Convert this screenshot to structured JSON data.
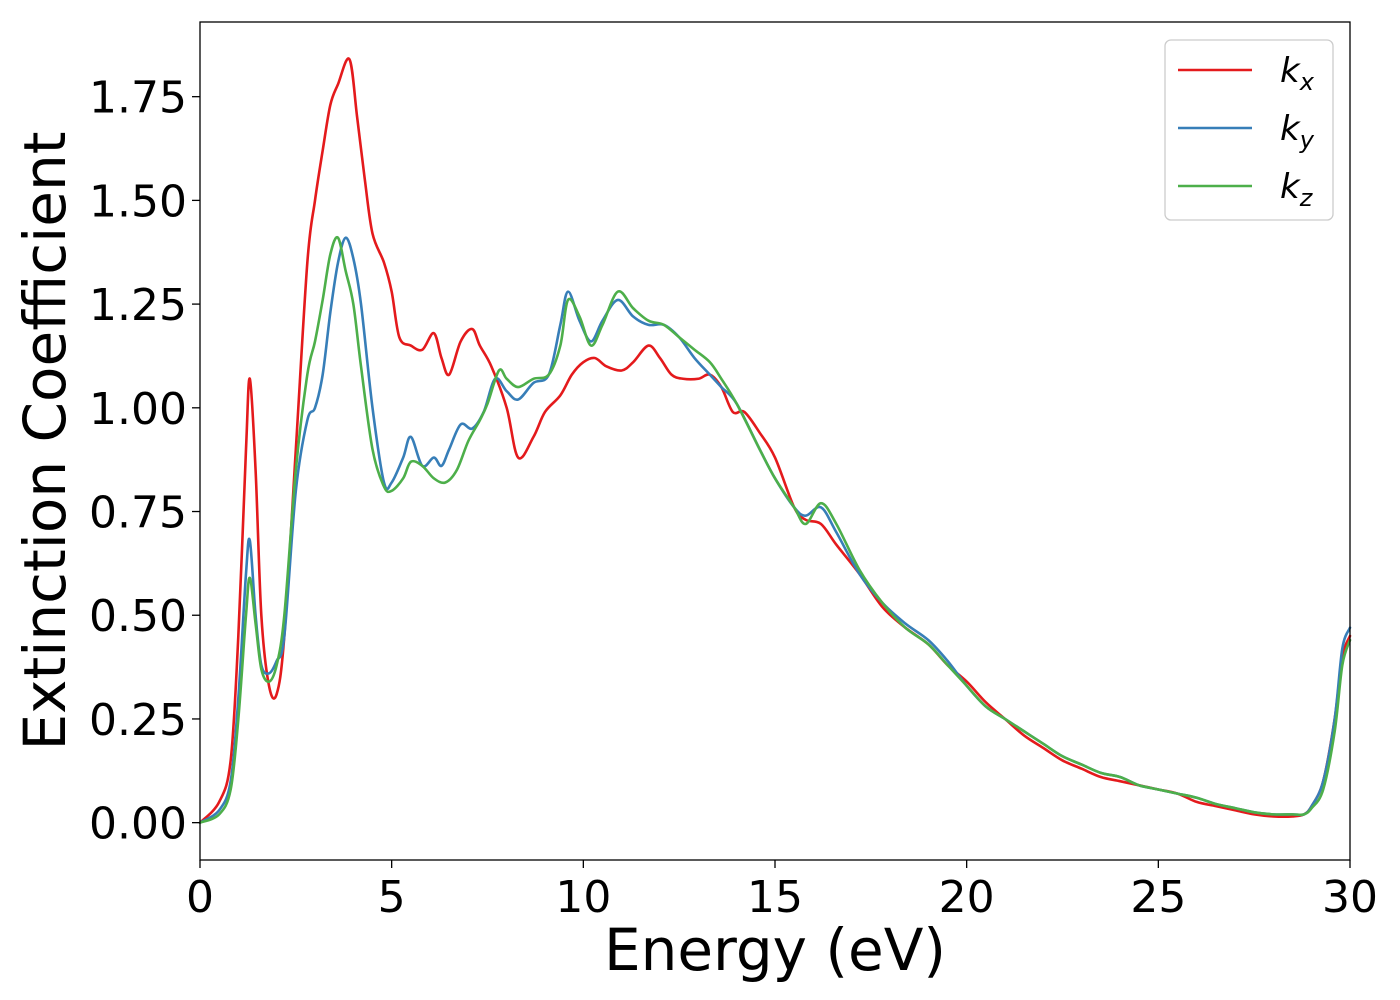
{
  "chart_data": {
    "type": "line",
    "title": "",
    "xlabel": "Energy (eV)",
    "ylabel": "Extinction Coefficient",
    "xlim": [
      0,
      30
    ],
    "ylim": [
      -0.09,
      1.93
    ],
    "xticks": [
      0,
      5,
      10,
      15,
      20,
      25,
      30
    ],
    "xtick_labels": [
      "0",
      "5",
      "10",
      "15",
      "20",
      "25",
      "30"
    ],
    "yticks": [
      0.0,
      0.25,
      0.5,
      0.75,
      1.0,
      1.25,
      1.5,
      1.75
    ],
    "ytick_labels": [
      "0.00",
      "0.25",
      "0.50",
      "0.75",
      "1.00",
      "1.25",
      "1.50",
      "1.75"
    ],
    "grid": false,
    "legend_position": "top-right",
    "series": [
      {
        "name": "k_x",
        "label_base": "k",
        "label_sub": "x",
        "color": "#e41a1c",
        "x": [
          0,
          0.5,
          0.8,
          1.0,
          1.2,
          1.3,
          1.45,
          1.6,
          1.8,
          2.0,
          2.2,
          2.5,
          2.8,
          3.0,
          3.2,
          3.4,
          3.6,
          3.9,
          4.1,
          4.3,
          4.5,
          4.8,
          5.0,
          5.2,
          5.5,
          5.8,
          6.1,
          6.3,
          6.5,
          6.8,
          7.1,
          7.3,
          7.6,
          8.0,
          8.3,
          8.7,
          9.0,
          9.4,
          9.7,
          10.0,
          10.3,
          10.6,
          11.0,
          11.3,
          11.7,
          12.0,
          12.3,
          12.6,
          13.0,
          13.3,
          13.6,
          13.9,
          14.2,
          14.6,
          15.0,
          15.5,
          15.8,
          16.2,
          16.6,
          17.2,
          17.8,
          18.4,
          19.0,
          19.5,
          20.0,
          20.5,
          21.0,
          21.5,
          22.0,
          22.5,
          23.0,
          23.5,
          24.0,
          24.5,
          25.0,
          25.5,
          26.0,
          26.5,
          27.0,
          27.5,
          28.0,
          28.5,
          28.8,
          29.0,
          29.3,
          29.6,
          29.8,
          30.0
        ],
        "y": [
          0.0,
          0.05,
          0.15,
          0.45,
          0.9,
          1.07,
          0.85,
          0.5,
          0.33,
          0.31,
          0.45,
          0.9,
          1.35,
          1.5,
          1.62,
          1.73,
          1.78,
          1.84,
          1.7,
          1.55,
          1.42,
          1.35,
          1.28,
          1.17,
          1.15,
          1.14,
          1.18,
          1.12,
          1.08,
          1.16,
          1.19,
          1.15,
          1.1,
          1.0,
          0.88,
          0.93,
          0.99,
          1.03,
          1.08,
          1.11,
          1.12,
          1.1,
          1.09,
          1.11,
          1.15,
          1.12,
          1.08,
          1.07,
          1.07,
          1.08,
          1.05,
          0.99,
          0.99,
          0.94,
          0.88,
          0.76,
          0.73,
          0.72,
          0.67,
          0.6,
          0.52,
          0.47,
          0.43,
          0.38,
          0.34,
          0.29,
          0.25,
          0.21,
          0.18,
          0.15,
          0.13,
          0.11,
          0.1,
          0.09,
          0.08,
          0.07,
          0.05,
          0.04,
          0.03,
          0.02,
          0.015,
          0.015,
          0.02,
          0.04,
          0.1,
          0.25,
          0.4,
          0.45
        ]
      },
      {
        "name": "k_y",
        "label_base": "k",
        "label_sub": "y",
        "color": "#377eb8",
        "x": [
          0,
          0.5,
          0.8,
          1.0,
          1.2,
          1.3,
          1.45,
          1.6,
          1.8,
          2.0,
          2.2,
          2.5,
          2.8,
          3.0,
          3.2,
          3.4,
          3.6,
          3.8,
          4.0,
          4.2,
          4.5,
          4.8,
          5.0,
          5.3,
          5.5,
          5.8,
          6.1,
          6.3,
          6.5,
          6.8,
          7.1,
          7.4,
          7.7,
          8.0,
          8.3,
          8.7,
          9.1,
          9.4,
          9.6,
          9.9,
          10.2,
          10.5,
          10.9,
          11.3,
          11.7,
          12.1,
          12.5,
          12.9,
          13.3,
          13.6,
          14.0,
          14.6,
          15.0,
          15.5,
          15.8,
          16.2,
          16.6,
          17.2,
          17.8,
          18.4,
          19.0,
          19.5,
          20.0,
          20.5,
          21.0,
          21.5,
          22.0,
          22.5,
          23.0,
          23.5,
          24.0,
          24.5,
          25.0,
          25.5,
          26.0,
          26.5,
          27.0,
          27.5,
          28.0,
          28.5,
          28.8,
          29.0,
          29.3,
          29.6,
          29.8,
          30.0
        ],
        "y": [
          0.0,
          0.03,
          0.1,
          0.3,
          0.6,
          0.68,
          0.5,
          0.38,
          0.36,
          0.39,
          0.45,
          0.8,
          0.97,
          1.0,
          1.08,
          1.23,
          1.35,
          1.41,
          1.36,
          1.25,
          1.0,
          0.82,
          0.82,
          0.88,
          0.93,
          0.86,
          0.88,
          0.86,
          0.9,
          0.96,
          0.95,
          0.99,
          1.07,
          1.04,
          1.02,
          1.06,
          1.08,
          1.2,
          1.28,
          1.21,
          1.16,
          1.21,
          1.26,
          1.22,
          1.2,
          1.2,
          1.17,
          1.12,
          1.08,
          1.05,
          1.01,
          0.9,
          0.83,
          0.76,
          0.74,
          0.76,
          0.7,
          0.6,
          0.53,
          0.48,
          0.44,
          0.39,
          0.33,
          0.28,
          0.25,
          0.22,
          0.19,
          0.16,
          0.14,
          0.12,
          0.11,
          0.09,
          0.08,
          0.07,
          0.06,
          0.045,
          0.035,
          0.025,
          0.02,
          0.02,
          0.02,
          0.04,
          0.1,
          0.25,
          0.42,
          0.47
        ]
      },
      {
        "name": "k_z",
        "label_base": "k",
        "label_sub": "z",
        "color": "#4daf4a",
        "x": [
          0,
          0.5,
          0.8,
          1.0,
          1.2,
          1.3,
          1.45,
          1.6,
          1.8,
          2.0,
          2.2,
          2.5,
          2.8,
          3.0,
          3.2,
          3.4,
          3.6,
          3.8,
          4.0,
          4.2,
          4.5,
          4.8,
          5.0,
          5.3,
          5.5,
          5.8,
          6.1,
          6.4,
          6.7,
          7.0,
          7.3,
          7.5,
          7.8,
          8.0,
          8.3,
          8.7,
          9.1,
          9.4,
          9.6,
          9.9,
          10.2,
          10.5,
          10.9,
          11.3,
          11.7,
          12.1,
          12.5,
          12.9,
          13.3,
          13.6,
          14.0,
          14.6,
          15.0,
          15.5,
          15.8,
          16.2,
          16.6,
          17.2,
          17.8,
          18.4,
          19.0,
          19.5,
          20.0,
          20.5,
          21.0,
          21.5,
          22.0,
          22.5,
          23.0,
          23.5,
          24.0,
          24.5,
          25.0,
          25.5,
          26.0,
          26.5,
          27.0,
          27.5,
          28.0,
          28.5,
          28.8,
          29.0,
          29.3,
          29.6,
          29.8,
          30.0
        ],
        "y": [
          0.0,
          0.02,
          0.08,
          0.25,
          0.5,
          0.59,
          0.48,
          0.37,
          0.34,
          0.38,
          0.5,
          0.85,
          1.08,
          1.16,
          1.26,
          1.37,
          1.41,
          1.33,
          1.25,
          1.1,
          0.9,
          0.81,
          0.8,
          0.83,
          0.87,
          0.86,
          0.83,
          0.82,
          0.85,
          0.92,
          0.97,
          1.01,
          1.09,
          1.07,
          1.05,
          1.07,
          1.08,
          1.15,
          1.26,
          1.22,
          1.15,
          1.2,
          1.28,
          1.24,
          1.21,
          1.2,
          1.17,
          1.14,
          1.11,
          1.07,
          1.01,
          0.9,
          0.83,
          0.76,
          0.72,
          0.77,
          0.72,
          0.61,
          0.53,
          0.47,
          0.43,
          0.38,
          0.33,
          0.28,
          0.25,
          0.22,
          0.19,
          0.16,
          0.14,
          0.12,
          0.11,
          0.09,
          0.08,
          0.07,
          0.06,
          0.045,
          0.035,
          0.025,
          0.02,
          0.02,
          0.02,
          0.035,
          0.08,
          0.22,
          0.38,
          0.44
        ]
      }
    ]
  }
}
